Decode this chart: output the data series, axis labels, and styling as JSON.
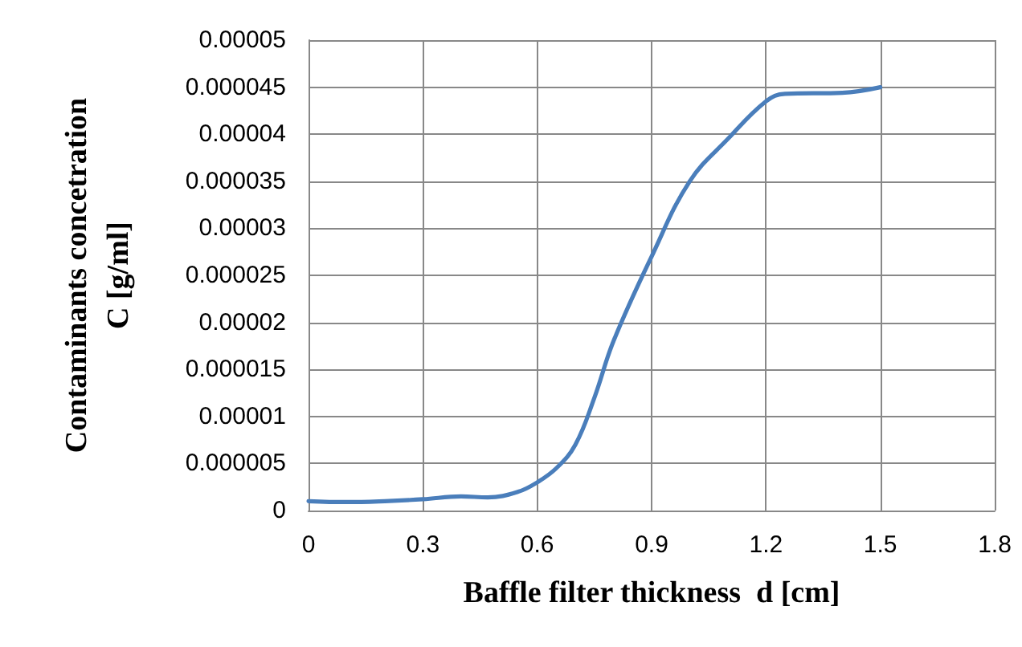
{
  "chart_data": {
    "type": "line",
    "xlabel": "Baffle filter thickness  d [cm]",
    "ylabel": "Contaminants concetration\nC [g/ml]",
    "series": [
      {
        "color": "#4a7ebb",
        "x": [
          0,
          0.1,
          0.2,
          0.3,
          0.4,
          0.47,
          0.55,
          0.6,
          0.65,
          0.7,
          0.75,
          0.8,
          0.9,
          1.0,
          1.1,
          1.2,
          1.25,
          1.4,
          1.5
        ],
        "values": [
          1e-06,
          9e-07,
          1e-06,
          1.2e-06,
          1.5e-06,
          1.4e-06,
          2e-06,
          3e-06,
          4.5e-06,
          7e-06,
          1.2e-05,
          1.8e-05,
          2.7e-05,
          3.5e-05,
          3.95e-05,
          4.35e-05,
          4.43e-05,
          4.44e-05,
          4.5e-05
        ]
      }
    ],
    "xlim": [
      0,
      1.8
    ],
    "xticks": [
      0,
      0.3,
      0.6,
      0.9,
      1.2,
      1.5,
      1.8
    ],
    "ylim": [
      0,
      5e-05
    ],
    "yticks": [
      0,
      {
        "value": 5e-06,
        "label": "0.000005"
      },
      {
        "value": 1e-05,
        "label": "0.00001"
      },
      {
        "value": 1.5e-05,
        "label": "0.000015"
      },
      {
        "value": 2e-05,
        "label": "0.00002"
      },
      {
        "value": 2.5e-05,
        "label": "0.000025"
      },
      {
        "value": 3e-05,
        "label": "0.00003"
      },
      {
        "value": 3.5e-05,
        "label": "0.000035"
      },
      {
        "value": 4e-05,
        "label": "0.00004"
      },
      {
        "value": 4.5e-05,
        "label": "0.000045"
      },
      {
        "value": 5e-05,
        "label": "0.00005"
      }
    ],
    "grid": true,
    "marker": "none",
    "line_style": "solid"
  }
}
